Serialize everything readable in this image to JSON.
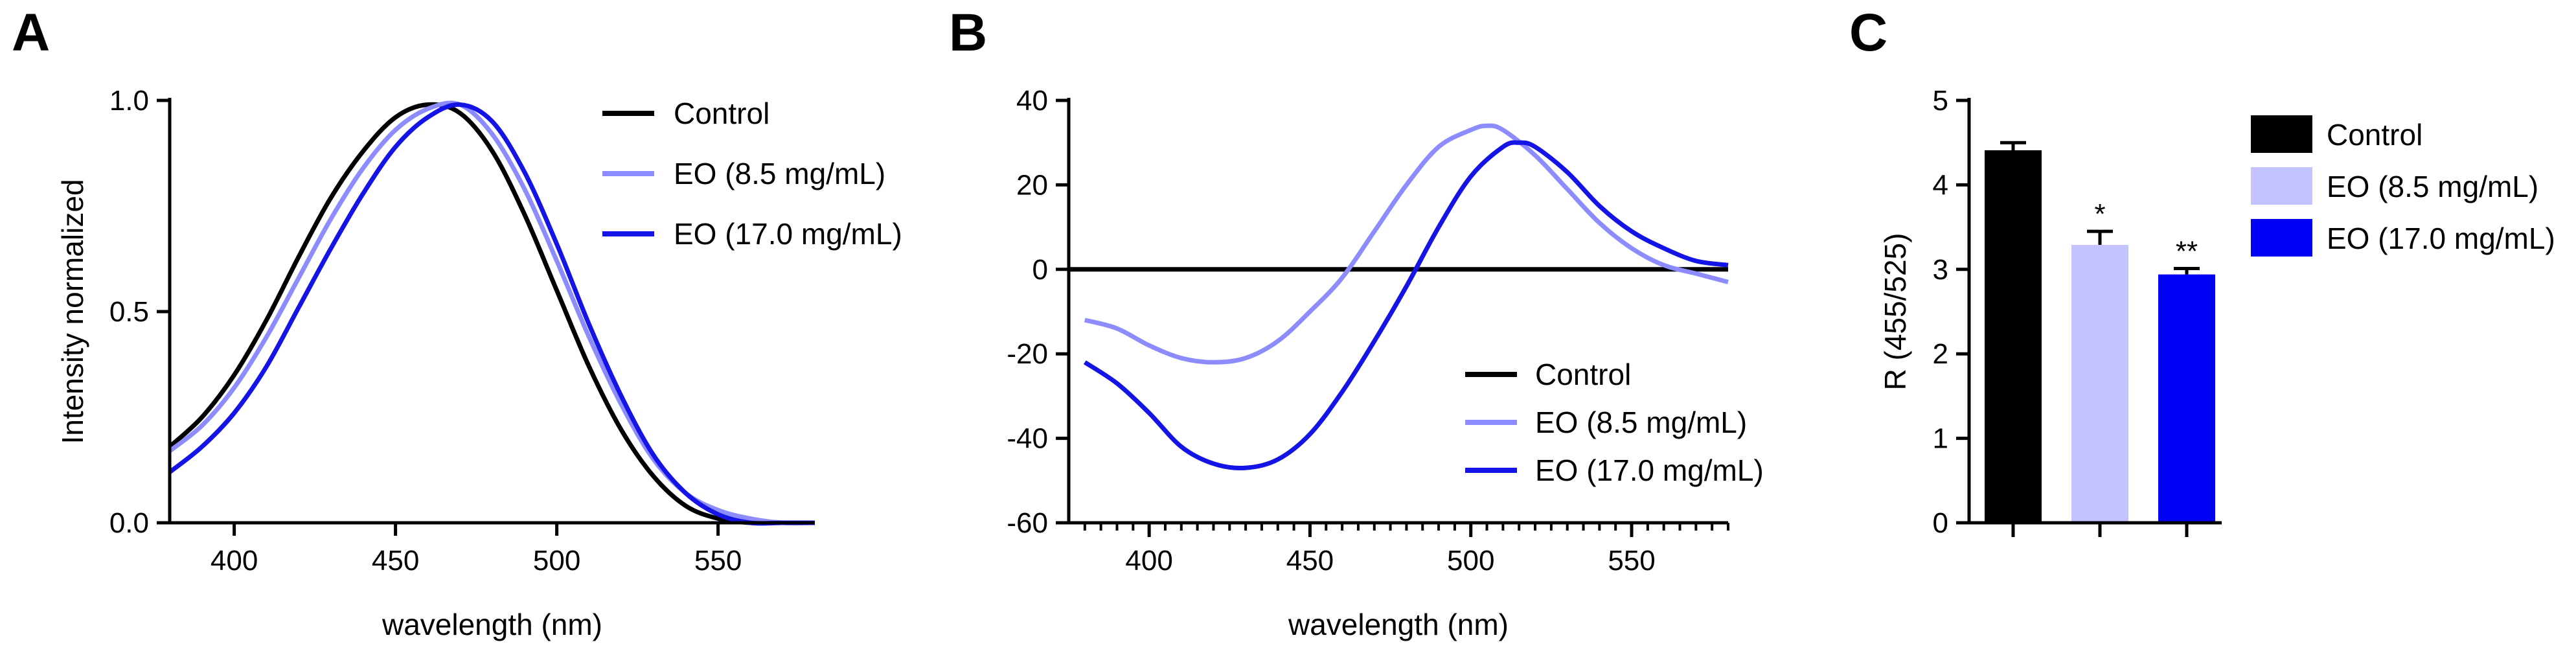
{
  "colors": {
    "control": "#000000",
    "eo85": "#8c8cff",
    "eo170": "#1414e6",
    "eo85_bar": "#c3c3ff",
    "eo170_bar": "#0000f5"
  },
  "chart_data": [
    {
      "panel": "A",
      "type": "line",
      "title": "",
      "xlabel": "wavelength (nm)",
      "ylabel": "Intensity normalized",
      "xlim": [
        380,
        580
      ],
      "ylim": [
        0,
        1
      ],
      "xticks": [
        400,
        450,
        500,
        550
      ],
      "xtick_labels": [
        "400",
        "450",
        "500",
        "550"
      ],
      "yticks": [
        0,
        0.5,
        1
      ],
      "ytick_labels": [
        "0.0",
        "0.5",
        "1.0"
      ],
      "legend_position": "top-right",
      "series": [
        {
          "name": "Control",
          "color": "#000000",
          "x": [
            380,
            390,
            400,
            410,
            420,
            430,
            440,
            450,
            460,
            470,
            480,
            490,
            500,
            510,
            520,
            530,
            540,
            550,
            560,
            570,
            580
          ],
          "y": [
            0.18,
            0.25,
            0.35,
            0.48,
            0.63,
            0.77,
            0.88,
            0.96,
            0.99,
            0.97,
            0.88,
            0.73,
            0.55,
            0.37,
            0.22,
            0.11,
            0.04,
            0.01,
            0.0,
            0.0,
            0.0
          ]
        },
        {
          "name": "EO (8.5 mg/mL)",
          "color": "#8c8cff",
          "x": [
            380,
            390,
            400,
            410,
            420,
            430,
            440,
            450,
            460,
            470,
            480,
            490,
            500,
            510,
            520,
            530,
            540,
            550,
            560,
            570,
            580
          ],
          "y": [
            0.17,
            0.23,
            0.32,
            0.44,
            0.58,
            0.72,
            0.84,
            0.93,
            0.98,
            0.99,
            0.92,
            0.79,
            0.62,
            0.44,
            0.28,
            0.15,
            0.07,
            0.03,
            0.01,
            0.0,
            0.0
          ]
        },
        {
          "name": "EO (17.0 mg/mL)",
          "color": "#1414e6",
          "x": [
            380,
            390,
            400,
            410,
            420,
            430,
            440,
            450,
            460,
            470,
            480,
            490,
            500,
            510,
            520,
            530,
            540,
            550,
            560,
            570,
            580
          ],
          "y": [
            0.12,
            0.18,
            0.26,
            0.37,
            0.51,
            0.65,
            0.78,
            0.89,
            0.96,
            0.99,
            0.95,
            0.83,
            0.66,
            0.47,
            0.3,
            0.16,
            0.07,
            0.02,
            0.0,
            0.0,
            0.0
          ]
        }
      ]
    },
    {
      "panel": "B",
      "type": "line",
      "title": "",
      "xlabel": "wavelength (nm)",
      "ylabel": "",
      "xlim": [
        375,
        580
      ],
      "ylim": [
        -60,
        40
      ],
      "xticks": [
        400,
        450,
        500,
        550
      ],
      "xtick_labels": [
        "400",
        "450",
        "500",
        "550"
      ],
      "yticks": [
        -60,
        -40,
        -20,
        0,
        20,
        40
      ],
      "ytick_labels": [
        "-60",
        "-40",
        "-20",
        "0",
        "20",
        "40"
      ],
      "minor_x_step": 5,
      "legend_position": "bottom-right",
      "series": [
        {
          "name": "Control",
          "color": "#000000",
          "x": [
            375,
            580
          ],
          "y": [
            0,
            0
          ]
        },
        {
          "name": "EO (8.5 mg/mL)",
          "color": "#8c8cff",
          "x": [
            380,
            390,
            400,
            410,
            420,
            430,
            440,
            450,
            460,
            470,
            480,
            490,
            500,
            505,
            510,
            520,
            530,
            540,
            550,
            560,
            570,
            580
          ],
          "y": [
            -12,
            -14,
            -18,
            -21,
            -22,
            -21,
            -17,
            -10,
            -2,
            9,
            20,
            29,
            33,
            34,
            33,
            27,
            19,
            11,
            5,
            1,
            -1,
            -3
          ]
        },
        {
          "name": "EO (17.0 mg/mL)",
          "color": "#1414e6",
          "x": [
            380,
            390,
            400,
            410,
            420,
            430,
            440,
            450,
            460,
            470,
            480,
            490,
            500,
            510,
            515,
            520,
            530,
            540,
            550,
            560,
            570,
            580
          ],
          "y": [
            -22,
            -27,
            -34,
            -42,
            -46,
            -47,
            -45,
            -39,
            -29,
            -17,
            -4,
            10,
            22,
            29,
            30,
            29,
            23,
            15,
            9,
            5,
            2,
            1
          ]
        }
      ]
    },
    {
      "panel": "C",
      "type": "bar",
      "title": "",
      "xlabel": "",
      "ylabel": "R  (455/525)",
      "ylim": [
        0,
        5
      ],
      "yticks": [
        0,
        1,
        2,
        3,
        4,
        5
      ],
      "ytick_labels": [
        "0",
        "1",
        "2",
        "3",
        "4",
        "5"
      ],
      "categories": [
        "Control",
        "EO (8.5 mg/mL)",
        "EO (17.0 mg/mL)"
      ],
      "values": [
        4.41,
        3.29,
        2.94
      ],
      "errors": [
        0.09,
        0.16,
        0.07
      ],
      "bar_colors": [
        "#000000",
        "#c3c3ff",
        "#0000f5"
      ],
      "significance": [
        "",
        "*",
        "**"
      ],
      "legend_position": "top-right"
    }
  ]
}
